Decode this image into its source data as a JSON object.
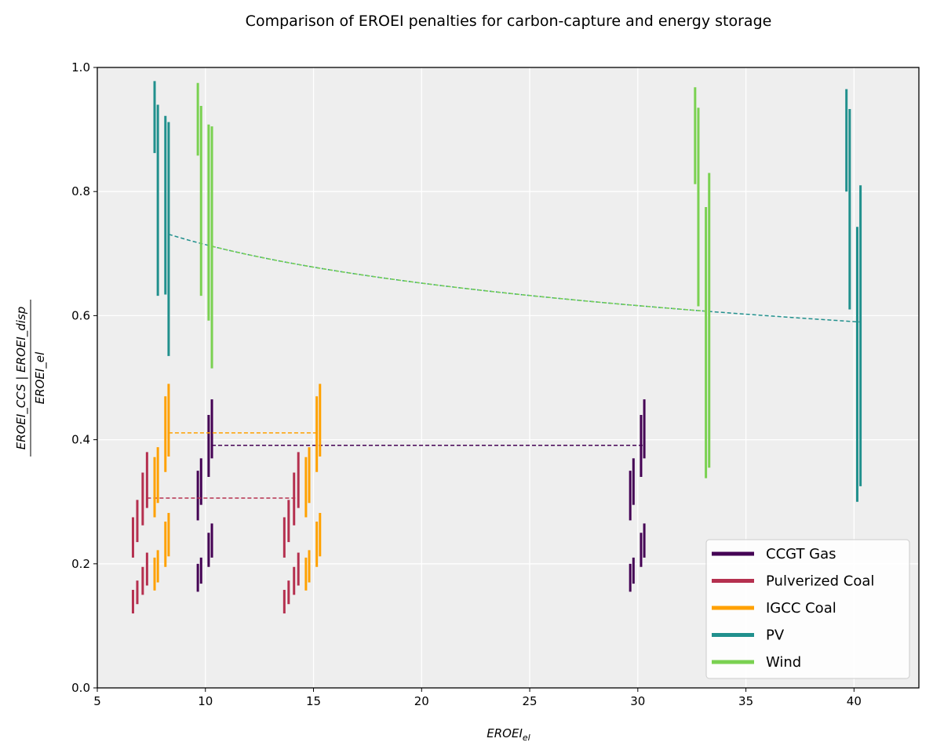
{
  "chart_data": {
    "type": "errorbar",
    "title": "Comparison of EROEI penalties for carbon-capture and energy storage",
    "xlabel": "EROEI",
    "xlabel_sub": "el",
    "ylabel_num": "EROEI_CCS | EROEI_disp",
    "ylabel_den": "EROEI_el",
    "xlim": [
      5,
      43
    ],
    "ylim": [
      0,
      1
    ],
    "xticks": [
      "5",
      "10",
      "15",
      "20",
      "25",
      "30",
      "35",
      "40"
    ],
    "xtick_values": [
      5,
      10,
      15,
      20,
      25,
      30,
      35,
      40
    ],
    "yticks": [
      "0.0",
      "0.2",
      "0.4",
      "0.6",
      "0.8",
      "1.0"
    ],
    "ytick_values": [
      0,
      0.2,
      0.4,
      0.6,
      0.8,
      1.0
    ],
    "grid": true,
    "legend_position": "lower-right",
    "colors": {
      "ccgt": "#440154",
      "pc": "#b5304f",
      "igcc": "#ffa100",
      "pv": "#21908d",
      "wind": "#7ad151"
    },
    "series": [
      {
        "name": "CCGT Gas",
        "key": "ccgt",
        "color": "#440154",
        "ranges": [
          [
            9.65,
            0.155,
            0.2
          ],
          [
            9.8,
            0.168,
            0.21
          ],
          [
            10.15,
            0.195,
            0.25
          ],
          [
            10.3,
            0.21,
            0.265
          ],
          [
            9.65,
            0.27,
            0.35
          ],
          [
            9.8,
            0.295,
            0.37
          ],
          [
            10.15,
            0.34,
            0.44
          ],
          [
            10.3,
            0.37,
            0.465
          ],
          [
            29.65,
            0.155,
            0.2
          ],
          [
            29.8,
            0.168,
            0.21
          ],
          [
            30.15,
            0.195,
            0.25
          ],
          [
            30.3,
            0.21,
            0.265
          ],
          [
            29.65,
            0.27,
            0.35
          ],
          [
            29.8,
            0.295,
            0.37
          ],
          [
            30.15,
            0.34,
            0.44
          ],
          [
            30.3,
            0.37,
            0.465
          ]
        ],
        "line": {
          "x": [
            10.3,
            30.3
          ],
          "y": [
            0.391,
            0.391
          ]
        }
      },
      {
        "name": "Pulverized Coal",
        "key": "pc",
        "color": "#b5304f",
        "ranges": [
          [
            6.65,
            0.12,
            0.158
          ],
          [
            6.85,
            0.135,
            0.173
          ],
          [
            7.1,
            0.15,
            0.195
          ],
          [
            7.3,
            0.165,
            0.218
          ],
          [
            6.65,
            0.21,
            0.275
          ],
          [
            6.85,
            0.235,
            0.303
          ],
          [
            7.1,
            0.262,
            0.347
          ],
          [
            7.3,
            0.29,
            0.38
          ],
          [
            13.65,
            0.12,
            0.158
          ],
          [
            13.85,
            0.135,
            0.173
          ],
          [
            14.1,
            0.15,
            0.195
          ],
          [
            14.3,
            0.165,
            0.218
          ],
          [
            13.65,
            0.21,
            0.275
          ],
          [
            13.85,
            0.235,
            0.303
          ],
          [
            14.1,
            0.262,
            0.347
          ],
          [
            14.3,
            0.29,
            0.38
          ]
        ],
        "line": {
          "x": [
            7.3,
            14.3
          ],
          "y": [
            0.306,
            0.306
          ]
        }
      },
      {
        "name": "IGCC Coal",
        "key": "igcc",
        "color": "#ffa100",
        "ranges": [
          [
            7.65,
            0.157,
            0.21
          ],
          [
            7.8,
            0.17,
            0.222
          ],
          [
            8.15,
            0.195,
            0.268
          ],
          [
            8.3,
            0.212,
            0.282
          ],
          [
            7.65,
            0.275,
            0.372
          ],
          [
            7.8,
            0.298,
            0.388
          ],
          [
            8.15,
            0.348,
            0.47
          ],
          [
            8.3,
            0.373,
            0.49
          ],
          [
            14.65,
            0.157,
            0.21
          ],
          [
            14.8,
            0.17,
            0.222
          ],
          [
            15.15,
            0.195,
            0.268
          ],
          [
            15.3,
            0.212,
            0.282
          ],
          [
            14.65,
            0.275,
            0.372
          ],
          [
            14.8,
            0.298,
            0.388
          ],
          [
            15.15,
            0.348,
            0.47
          ],
          [
            15.3,
            0.373,
            0.49
          ]
        ],
        "line": {
          "x": [
            8.3,
            15.3
          ],
          "y": [
            0.411,
            0.411
          ]
        }
      },
      {
        "name": "PV",
        "key": "pv",
        "color": "#21908d",
        "ranges": [
          [
            7.65,
            0.862,
            0.978
          ],
          [
            7.8,
            0.632,
            0.94
          ],
          [
            8.15,
            0.634,
            0.922
          ],
          [
            8.3,
            0.535,
            0.912
          ],
          [
            39.65,
            0.8,
            0.965
          ],
          [
            39.8,
            0.61,
            0.933
          ],
          [
            40.15,
            0.3,
            0.743
          ],
          [
            40.3,
            0.325,
            0.81
          ]
        ],
        "curve": {
          "x_start": 8.3,
          "x_end": 40.3,
          "a": 0.0895,
          "b": 0.4115
        }
      },
      {
        "name": "Wind",
        "key": "wind",
        "color": "#7ad151",
        "ranges": [
          [
            9.65,
            0.858,
            0.975
          ],
          [
            9.8,
            0.632,
            0.938
          ],
          [
            10.15,
            0.592,
            0.908
          ],
          [
            10.3,
            0.515,
            0.905
          ],
          [
            32.65,
            0.812,
            0.968
          ],
          [
            32.8,
            0.615,
            0.935
          ],
          [
            33.15,
            0.338,
            0.775
          ],
          [
            33.3,
            0.355,
            0.83
          ]
        ],
        "curve": {
          "x_start": 10.3,
          "x_end": 33.3,
          "a": 0.0895,
          "b": 0.4115
        }
      }
    ],
    "legend": [
      {
        "label": "CCGT Gas",
        "key": "ccgt"
      },
      {
        "label": "Pulverized Coal",
        "key": "pc"
      },
      {
        "label": "IGCC Coal",
        "key": "igcc"
      },
      {
        "label": "PV",
        "key": "pv"
      },
      {
        "label": "Wind",
        "key": "wind"
      }
    ]
  }
}
